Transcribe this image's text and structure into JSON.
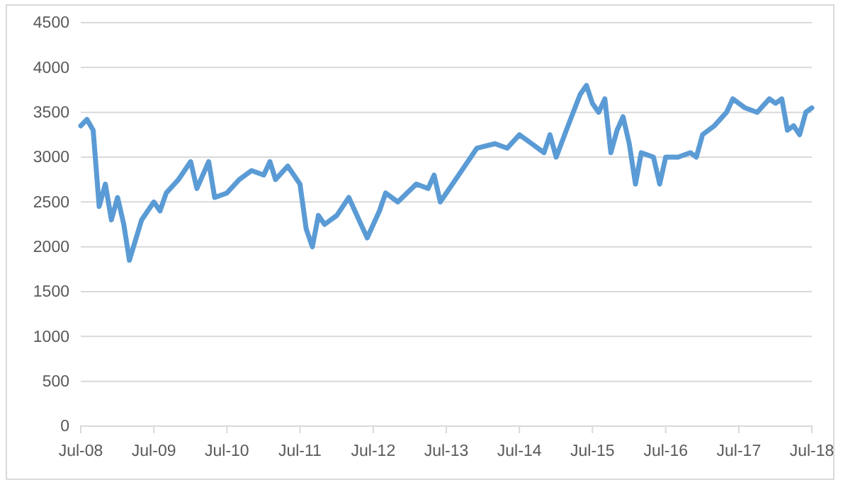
{
  "chart_data": {
    "type": "line",
    "x": [
      "2008-07",
      "2008-08",
      "2008-09",
      "2008-10",
      "2008-11",
      "2008-12",
      "2009-01",
      "2009-02",
      "2009-03",
      "2009-05",
      "2009-07",
      "2009-08",
      "2009-09",
      "2009-11",
      "2010-01",
      "2010-02",
      "2010-04",
      "2010-05",
      "2010-07",
      "2010-09",
      "2010-11",
      "2011-01",
      "2011-02",
      "2011-03",
      "2011-05",
      "2011-07",
      "2011-08",
      "2011-09",
      "2011-10",
      "2011-11",
      "2012-01",
      "2012-03",
      "2012-05",
      "2012-06",
      "2012-08",
      "2012-09",
      "2012-11",
      "2013-02",
      "2013-04",
      "2013-05",
      "2013-06",
      "2013-08",
      "2013-10",
      "2013-12",
      "2014-03",
      "2014-05",
      "2014-07",
      "2014-09",
      "2014-11",
      "2014-12",
      "2015-01",
      "2015-03",
      "2015-05",
      "2015-06",
      "2015-07",
      "2015-08",
      "2015-09",
      "2015-10",
      "2015-11",
      "2015-12",
      "2016-01",
      "2016-02",
      "2016-03",
      "2016-05",
      "2016-06",
      "2016-07",
      "2016-09",
      "2016-11",
      "2016-12",
      "2017-01",
      "2017-03",
      "2017-05",
      "2017-06",
      "2017-08",
      "2017-10",
      "2017-12",
      "2018-01",
      "2018-02",
      "2018-03",
      "2018-04",
      "2018-05",
      "2018-06",
      "2018-07"
    ],
    "series": [
      {
        "color": "#5b9bd5",
        "values": [
          3350,
          3420,
          3300,
          2450,
          2700,
          2300,
          2550,
          2250,
          1850,
          2300,
          2500,
          2400,
          2600,
          2750,
          2950,
          2650,
          2950,
          2550,
          2600,
          2750,
          2850,
          2800,
          2950,
          2750,
          2900,
          2700,
          2200,
          2000,
          2350,
          2250,
          2350,
          2550,
          2250,
          2100,
          2400,
          2600,
          2500,
          2700,
          2650,
          2800,
          2500,
          2700,
          2900,
          3100,
          3150,
          3100,
          3250,
          3150,
          3050,
          3250,
          3000,
          3350,
          3700,
          3800,
          3600,
          3500,
          3650,
          3050,
          3300,
          3450,
          3150,
          2700,
          3050,
          3000,
          2700,
          3000,
          3000,
          3050,
          3000,
          3250,
          3350,
          3500,
          3650,
          3550,
          3500,
          3650,
          3600,
          3650,
          3300,
          3350,
          3250,
          3500,
          3550
        ]
      }
    ],
    "xlim": [
      "2008-07",
      "2018-07"
    ],
    "xticks": [
      {
        "value": "2008-07",
        "label": "Jul-08"
      },
      {
        "value": "2009-07",
        "label": "Jul-09"
      },
      {
        "value": "2010-07",
        "label": "Jul-10"
      },
      {
        "value": "2011-07",
        "label": "Jul-11"
      },
      {
        "value": "2012-07",
        "label": "Jul-12"
      },
      {
        "value": "2013-07",
        "label": "Jul-13"
      },
      {
        "value": "2014-07",
        "label": "Jul-14"
      },
      {
        "value": "2015-07",
        "label": "Jul-15"
      },
      {
        "value": "2016-07",
        "label": "Jul-16"
      },
      {
        "value": "2017-07",
        "label": "Jul-17"
      },
      {
        "value": "2018-07",
        "label": "Jul-18"
      }
    ],
    "ylim": [
      0,
      4500
    ],
    "yticks": [
      0,
      500,
      1000,
      1500,
      2000,
      2500,
      3000,
      3500,
      4000,
      4500
    ],
    "grid": "y",
    "legend": false,
    "marker": "none",
    "line_style": "solid"
  }
}
